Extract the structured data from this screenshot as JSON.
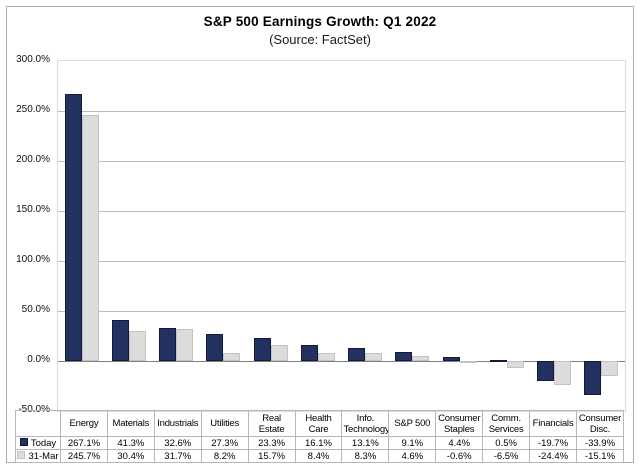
{
  "title": "S&P 500 Earnings Growth: Q1 2022",
  "subtitle": "(Source: FactSet)",
  "colors": {
    "today_fill": "#22315f",
    "today_border": "#121c3a",
    "prior_fill": "#dcdcdc",
    "prior_border": "#c3c3c3",
    "gridline": "#bdbdbd",
    "zero_line": "#7f7f7f",
    "plot_border": "#dcdcdc",
    "table_border": "#b7b7b7",
    "background": "#ffffff"
  },
  "chart_data": {
    "type": "bar",
    "title": "S&P 500 Earnings Growth: Q1 2022",
    "subtitle": "(Source: FactSet)",
    "categories": [
      "Energy",
      "Materials",
      "Industrials",
      "Utilities",
      "Real Estate",
      "Health Care",
      "Info. Technology",
      "S&P 500",
      "Consumer Staples",
      "Comm. Services",
      "Financials",
      "Consumer Disc."
    ],
    "series": [
      {
        "name": "Today",
        "values": [
          267.1,
          41.3,
          32.6,
          27.3,
          23.3,
          16.1,
          13.1,
          9.1,
          4.4,
          0.5,
          -19.7,
          -33.9
        ],
        "labels": [
          "267.1%",
          "41.3%",
          "32.6%",
          "27.3%",
          "23.3%",
          "16.1%",
          "13.1%",
          "9.1%",
          "4.4%",
          "0.5%",
          "-19.7%",
          "-33.9%"
        ]
      },
      {
        "name": "31-Mar",
        "values": [
          245.7,
          30.4,
          31.7,
          8.2,
          15.7,
          8.4,
          8.3,
          4.6,
          -0.6,
          -6.5,
          -24.4,
          -15.1
        ],
        "labels": [
          "245.7%",
          "30.4%",
          "31.7%",
          "8.2%",
          "15.7%",
          "8.4%",
          "8.3%",
          "4.6%",
          "-0.6%",
          "-6.5%",
          "-24.4%",
          "-15.1%"
        ]
      }
    ],
    "ylabel": "",
    "xlabel": "",
    "ylim": [
      -50,
      300
    ],
    "yticks": [
      300,
      250,
      200,
      150,
      100,
      50,
      0,
      -50
    ],
    "ytick_labels": [
      "300.0%",
      "250.0%",
      "200.0%",
      "150.0%",
      "100.0%",
      "50.0%",
      "0.0%",
      "-50.0%"
    ],
    "grid": true,
    "legend_position": "table-left",
    "value_format": "percent_1dp"
  }
}
